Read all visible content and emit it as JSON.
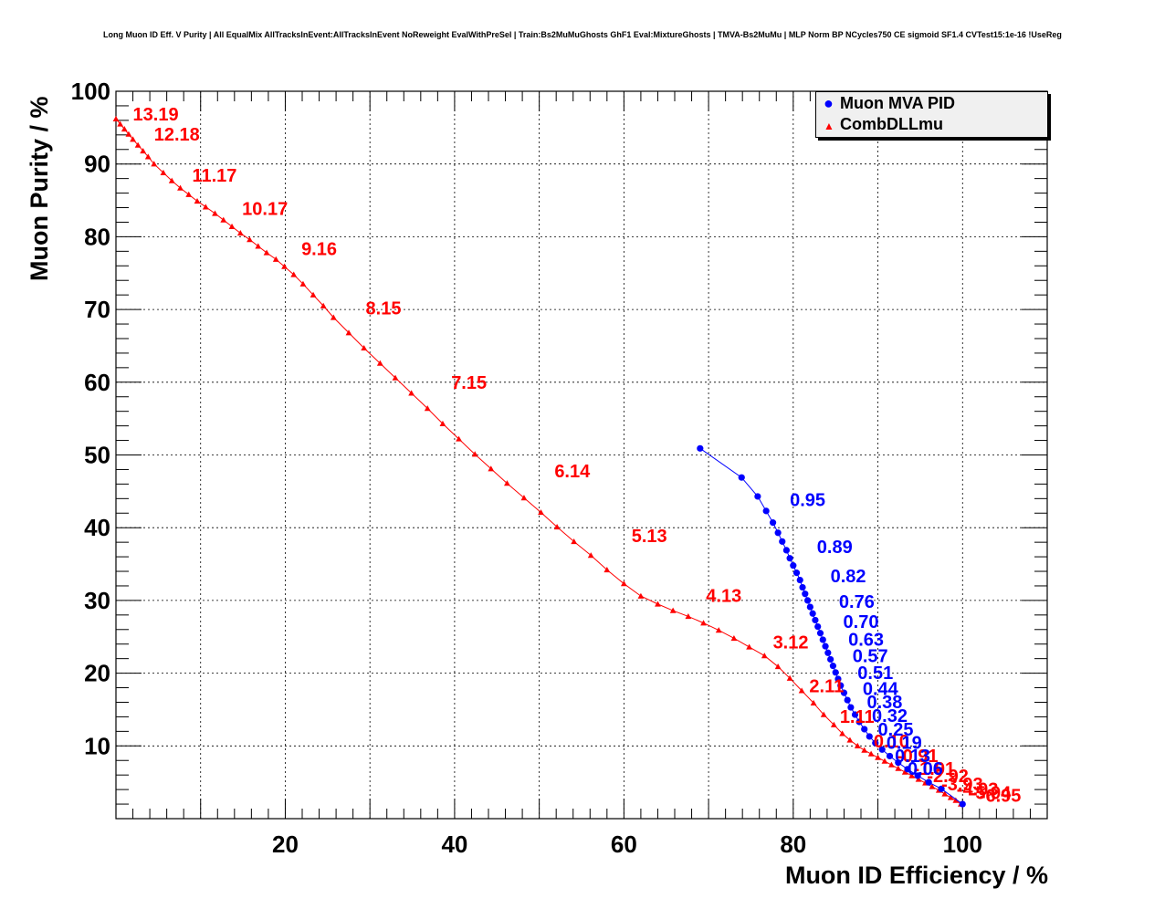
{
  "title": "Long Muon ID Eff. V Purity | All EqualMix AllTracksInEvent:AllTracksInEvent NoReweight EvalWithPreSel | Train:Bs2MuMuGhosts GhF1 Eval:MixtureGhosts | TMVA-Bs2MuMu | MLP Norm BP NCycles750 CE sigmoid SF1.4 CVTest15:1e-16 !UseReg",
  "chart_data": {
    "type": "line",
    "xlabel": "Muon ID Efficiency / %",
    "ylabel": "Muon Purity / %",
    "xlim": [
      0,
      110
    ],
    "ylim": [
      0,
      100
    ],
    "xticks": [
      20,
      40,
      60,
      80,
      100
    ],
    "yticks": [
      10,
      20,
      30,
      40,
      50,
      60,
      70,
      80,
      90,
      100
    ],
    "grid": true,
    "legend_position": "top-right",
    "series": [
      {
        "name": "Muon MVA PID",
        "color": "#0000ff",
        "marker": "circle",
        "x": [
          69.0,
          73.9,
          75.8,
          76.8,
          77.6,
          78.2,
          78.7,
          79.2,
          79.6,
          80.0,
          80.4,
          80.8,
          81.1,
          81.4,
          81.7,
          82.0,
          82.3,
          82.6,
          82.9,
          83.2,
          83.5,
          83.8,
          84.1,
          84.4,
          84.7,
          85.0,
          85.3,
          85.6,
          86.0,
          86.4,
          86.8,
          87.3,
          87.8,
          88.4,
          89.0,
          89.7,
          90.5,
          91.4,
          92.4,
          93.5,
          94.7,
          96.0,
          97.5,
          100.0
        ],
        "y": [
          50.9,
          46.9,
          44.3,
          42.3,
          40.7,
          39.3,
          38.1,
          36.9,
          35.8,
          34.8,
          33.8,
          32.8,
          31.8,
          30.9,
          30.0,
          29.1,
          28.2,
          27.3,
          26.4,
          25.5,
          24.6,
          23.7,
          22.8,
          21.9,
          21.0,
          20.1,
          19.2,
          18.3,
          17.3,
          16.3,
          15.3,
          14.3,
          13.3,
          12.3,
          11.3,
          10.4,
          9.5,
          8.6,
          7.7,
          6.8,
          5.9,
          5.0,
          4.1,
          2.0
        ],
        "annotations": [
          {
            "x": 79.6,
            "y": 43.0,
            "label": "0.95"
          },
          {
            "x": 82.8,
            "y": 36.5,
            "label": "0.89"
          },
          {
            "x": 84.4,
            "y": 32.5,
            "label": "0.82"
          },
          {
            "x": 85.4,
            "y": 29.0,
            "label": "0.76"
          },
          {
            "x": 85.9,
            "y": 26.2,
            "label": "0.70"
          },
          {
            "x": 86.5,
            "y": 23.8,
            "label": "0.63"
          },
          {
            "x": 87.0,
            "y": 21.5,
            "label": "0.57"
          },
          {
            "x": 87.6,
            "y": 19.2,
            "label": "0.51"
          },
          {
            "x": 88.2,
            "y": 17.0,
            "label": "0.44"
          },
          {
            "x": 88.7,
            "y": 15.2,
            "label": "0.38"
          },
          {
            "x": 89.3,
            "y": 13.3,
            "label": "0.32"
          },
          {
            "x": 90.0,
            "y": 11.4,
            "label": "0.25"
          },
          {
            "x": 91.0,
            "y": 9.6,
            "label": "0.19"
          },
          {
            "x": 92.0,
            "y": 7.8,
            "label": "0.13"
          },
          {
            "x": 93.5,
            "y": 6.0,
            "label": "0.06"
          }
        ]
      },
      {
        "name": "CombDLLmu",
        "color": "#ff0000",
        "marker": "triangle",
        "x": [
          0.0,
          0.5,
          1.0,
          1.5,
          2.0,
          2.6,
          3.2,
          3.8,
          4.5,
          5.6,
          6.6,
          7.6,
          8.6,
          9.6,
          10.6,
          11.7,
          12.7,
          13.7,
          14.7,
          15.8,
          16.8,
          17.8,
          18.9,
          19.9,
          21.0,
          22.1,
          23.3,
          24.5,
          25.7,
          27.5,
          29.3,
          31.2,
          33.0,
          34.9,
          36.8,
          38.6,
          40.5,
          42.4,
          44.3,
          46.2,
          48.2,
          50.2,
          52.1,
          54.1,
          56.1,
          58.0,
          60.0,
          62.0,
          64.0,
          65.8,
          67.6,
          69.4,
          71.2,
          73.0,
          74.8,
          76.6,
          78.2,
          79.6,
          81.0,
          82.4,
          83.6,
          84.8,
          85.8,
          86.7,
          87.6,
          88.4,
          89.2,
          90.0,
          90.8,
          91.6,
          92.4,
          93.2,
          94.0,
          94.8,
          95.6,
          96.4,
          97.2,
          97.9,
          98.6,
          99.2,
          99.8
        ],
        "y": [
          96.2,
          95.5,
          94.8,
          94.1,
          93.4,
          92.6,
          91.8,
          91.0,
          90.0,
          88.8,
          87.7,
          86.7,
          85.8,
          84.9,
          84.1,
          83.2,
          82.3,
          81.4,
          80.5,
          79.6,
          78.7,
          77.8,
          76.9,
          75.9,
          74.8,
          73.5,
          72.0,
          70.5,
          68.9,
          66.8,
          64.7,
          62.6,
          60.6,
          58.5,
          56.4,
          54.3,
          52.2,
          50.1,
          48.1,
          46.1,
          44.1,
          42.1,
          40.1,
          38.1,
          36.2,
          34.2,
          32.3,
          30.6,
          29.5,
          28.6,
          27.8,
          26.9,
          25.9,
          24.8,
          23.6,
          22.4,
          20.9,
          19.3,
          17.6,
          15.9,
          14.3,
          12.9,
          11.7,
          10.8,
          10.0,
          9.4,
          8.9,
          8.4,
          7.9,
          7.4,
          6.9,
          6.4,
          5.9,
          5.4,
          4.9,
          4.4,
          3.9,
          3.4,
          2.9,
          2.5,
          2.0
        ],
        "annotations": [
          {
            "x": 2.0,
            "y": 96.0,
            "label": "13.19"
          },
          {
            "x": 4.5,
            "y": 93.2,
            "label": "12.18"
          },
          {
            "x": 9.0,
            "y": 87.6,
            "label": "11.17"
          },
          {
            "x": 14.9,
            "y": 83.0,
            "label": "10.17"
          },
          {
            "x": 21.9,
            "y": 77.5,
            "label": "9.16"
          },
          {
            "x": 29.5,
            "y": 69.3,
            "label": "8.15"
          },
          {
            "x": 39.6,
            "y": 59.1,
            "label": "7.15"
          },
          {
            "x": 51.8,
            "y": 46.9,
            "label": "6.14"
          },
          {
            "x": 60.9,
            "y": 38.0,
            "label": "5.13"
          },
          {
            "x": 69.7,
            "y": 29.8,
            "label": "4.13"
          },
          {
            "x": 77.6,
            "y": 23.4,
            "label": "3.12"
          },
          {
            "x": 81.9,
            "y": 17.4,
            "label": "2.11"
          },
          {
            "x": 85.5,
            "y": 13.2,
            "label": "1.11"
          },
          {
            "x": 89.5,
            "y": 9.8,
            "label": "0.10"
          },
          {
            "x": 92.2,
            "y": 7.8,
            "label": "-0.91"
          },
          {
            "x": 94.2,
            "y": 6.0,
            "label": "-1.91"
          },
          {
            "x": 95.8,
            "y": 5.0,
            "label": "-2.92"
          },
          {
            "x": 97.5,
            "y": 3.9,
            "label": "-3.93"
          },
          {
            "x": 99.3,
            "y": 3.2,
            "label": "-4.93"
          },
          {
            "x": 100.8,
            "y": 2.7,
            "label": "-5.94"
          },
          {
            "x": 102.0,
            "y": 2.3,
            "label": "-6.95"
          }
        ]
      }
    ]
  }
}
